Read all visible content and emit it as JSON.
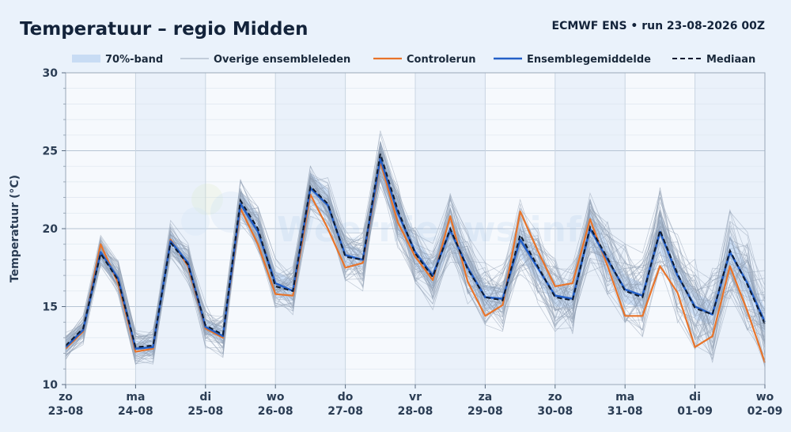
{
  "header": {
    "title": "Temperatuur – regio Midden",
    "run_info": "ECMWF ENS • run 23-08-2026 00Z"
  },
  "legend": [
    {
      "key": "band",
      "label": "70%-band",
      "color": "#c8dcf4"
    },
    {
      "key": "members",
      "label": "Overige ensembleleden",
      "color": "#9aa8b8"
    },
    {
      "key": "control",
      "label": "Controlerun",
      "color": "#e8742a"
    },
    {
      "key": "mean",
      "label": "Ensemblegemiddelde",
      "color": "#2460c8"
    },
    {
      "key": "median",
      "label": "Mediaan",
      "color": "#0d1a30"
    }
  ],
  "watermark": {
    "text": "Weernieuws.info"
  },
  "chart_data": {
    "type": "line",
    "ylabel": "Temperatuur (°C)",
    "xlabel": "",
    "ylim": [
      10,
      30
    ],
    "y_ticks": [
      10,
      15,
      20,
      25,
      30
    ],
    "grid": true,
    "legend_position": "top",
    "x_start": "2026-08-23 00:00",
    "x_end": "2026-09-02 00:00",
    "x_step_hours": 6,
    "x_ticks": [
      {
        "day": "zo",
        "date": "23-08"
      },
      {
        "day": "ma",
        "date": "24-08"
      },
      {
        "day": "di",
        "date": "25-08"
      },
      {
        "day": "wo",
        "date": "26-08"
      },
      {
        "day": "do",
        "date": "27-08"
      },
      {
        "day": "vr",
        "date": "28-08"
      },
      {
        "day": "za",
        "date": "29-08"
      },
      {
        "day": "zo",
        "date": "30-08"
      },
      {
        "day": "ma",
        "date": "31-08"
      },
      {
        "day": "di",
        "date": "01-09"
      },
      {
        "day": "wo",
        "date": "02-09"
      }
    ],
    "series": [
      {
        "name": "Ensemblegemiddelde",
        "values": [
          12.4,
          13.5,
          18.5,
          16.8,
          12.3,
          12.4,
          19.2,
          17.8,
          13.7,
          13.1,
          21.6,
          19.8,
          16.5,
          16.0,
          22.6,
          21.5,
          18.3,
          18.0,
          24.5,
          21.0,
          18.5,
          17.0,
          19.9,
          17.5,
          15.6,
          15.5,
          19.3,
          17.5,
          15.7,
          15.5,
          20.0,
          18.0,
          16.1,
          15.7,
          19.8,
          17.0,
          15.0,
          14.5,
          18.5,
          16.5,
          14.0
        ]
      },
      {
        "name": "Mediaan",
        "values": [
          12.5,
          13.6,
          18.4,
          16.7,
          12.4,
          12.5,
          19.1,
          17.7,
          13.8,
          13.2,
          21.8,
          20.0,
          16.3,
          16.0,
          22.7,
          21.6,
          18.2,
          18.0,
          24.8,
          21.2,
          18.4,
          16.9,
          20.0,
          17.4,
          15.6,
          15.4,
          19.6,
          17.6,
          15.6,
          15.4,
          20.1,
          18.1,
          16.0,
          15.6,
          19.9,
          17.1,
          14.9,
          14.5,
          18.6,
          16.4,
          13.9
        ]
      },
      {
        "name": "Controlerun",
        "values": [
          12.3,
          13.4,
          19.0,
          16.5,
          12.1,
          12.3,
          19.3,
          17.6,
          13.6,
          13.0,
          21.3,
          19.0,
          15.8,
          15.7,
          22.2,
          20.0,
          17.5,
          17.8,
          24.3,
          20.4,
          18.2,
          16.7,
          20.8,
          16.6,
          14.4,
          15.1,
          21.1,
          18.6,
          16.3,
          16.5,
          20.6,
          17.6,
          14.4,
          14.4,
          17.6,
          15.9,
          12.4,
          13.1,
          17.6,
          14.7,
          11.4
        ]
      },
      {
        "name": "70%-band onder",
        "values": [
          12.0,
          13.1,
          17.8,
          16.3,
          11.9,
          12.0,
          18.6,
          17.3,
          13.3,
          12.7,
          20.8,
          18.8,
          15.6,
          15.4,
          21.6,
          20.6,
          17.6,
          17.5,
          23.0,
          19.9,
          17.6,
          16.2,
          18.8,
          16.6,
          14.8,
          14.8,
          18.2,
          16.6,
          15.0,
          14.9,
          18.9,
          17.0,
          15.2,
          14.9,
          18.5,
          16.1,
          14.2,
          13.8,
          17.3,
          15.5,
          13.2
        ]
      },
      {
        "name": "70%-band boven",
        "values": [
          12.9,
          14.0,
          19.1,
          17.3,
          12.8,
          12.9,
          19.8,
          18.3,
          14.2,
          13.6,
          22.4,
          20.9,
          17.3,
          16.7,
          23.6,
          22.5,
          19.1,
          18.6,
          25.6,
          22.1,
          19.4,
          17.9,
          21.0,
          18.4,
          16.4,
          16.2,
          20.4,
          18.4,
          16.6,
          16.1,
          21.1,
          19.0,
          17.0,
          16.5,
          21.0,
          18.0,
          15.9,
          15.3,
          19.6,
          17.5,
          14.9
        ]
      }
    ]
  }
}
